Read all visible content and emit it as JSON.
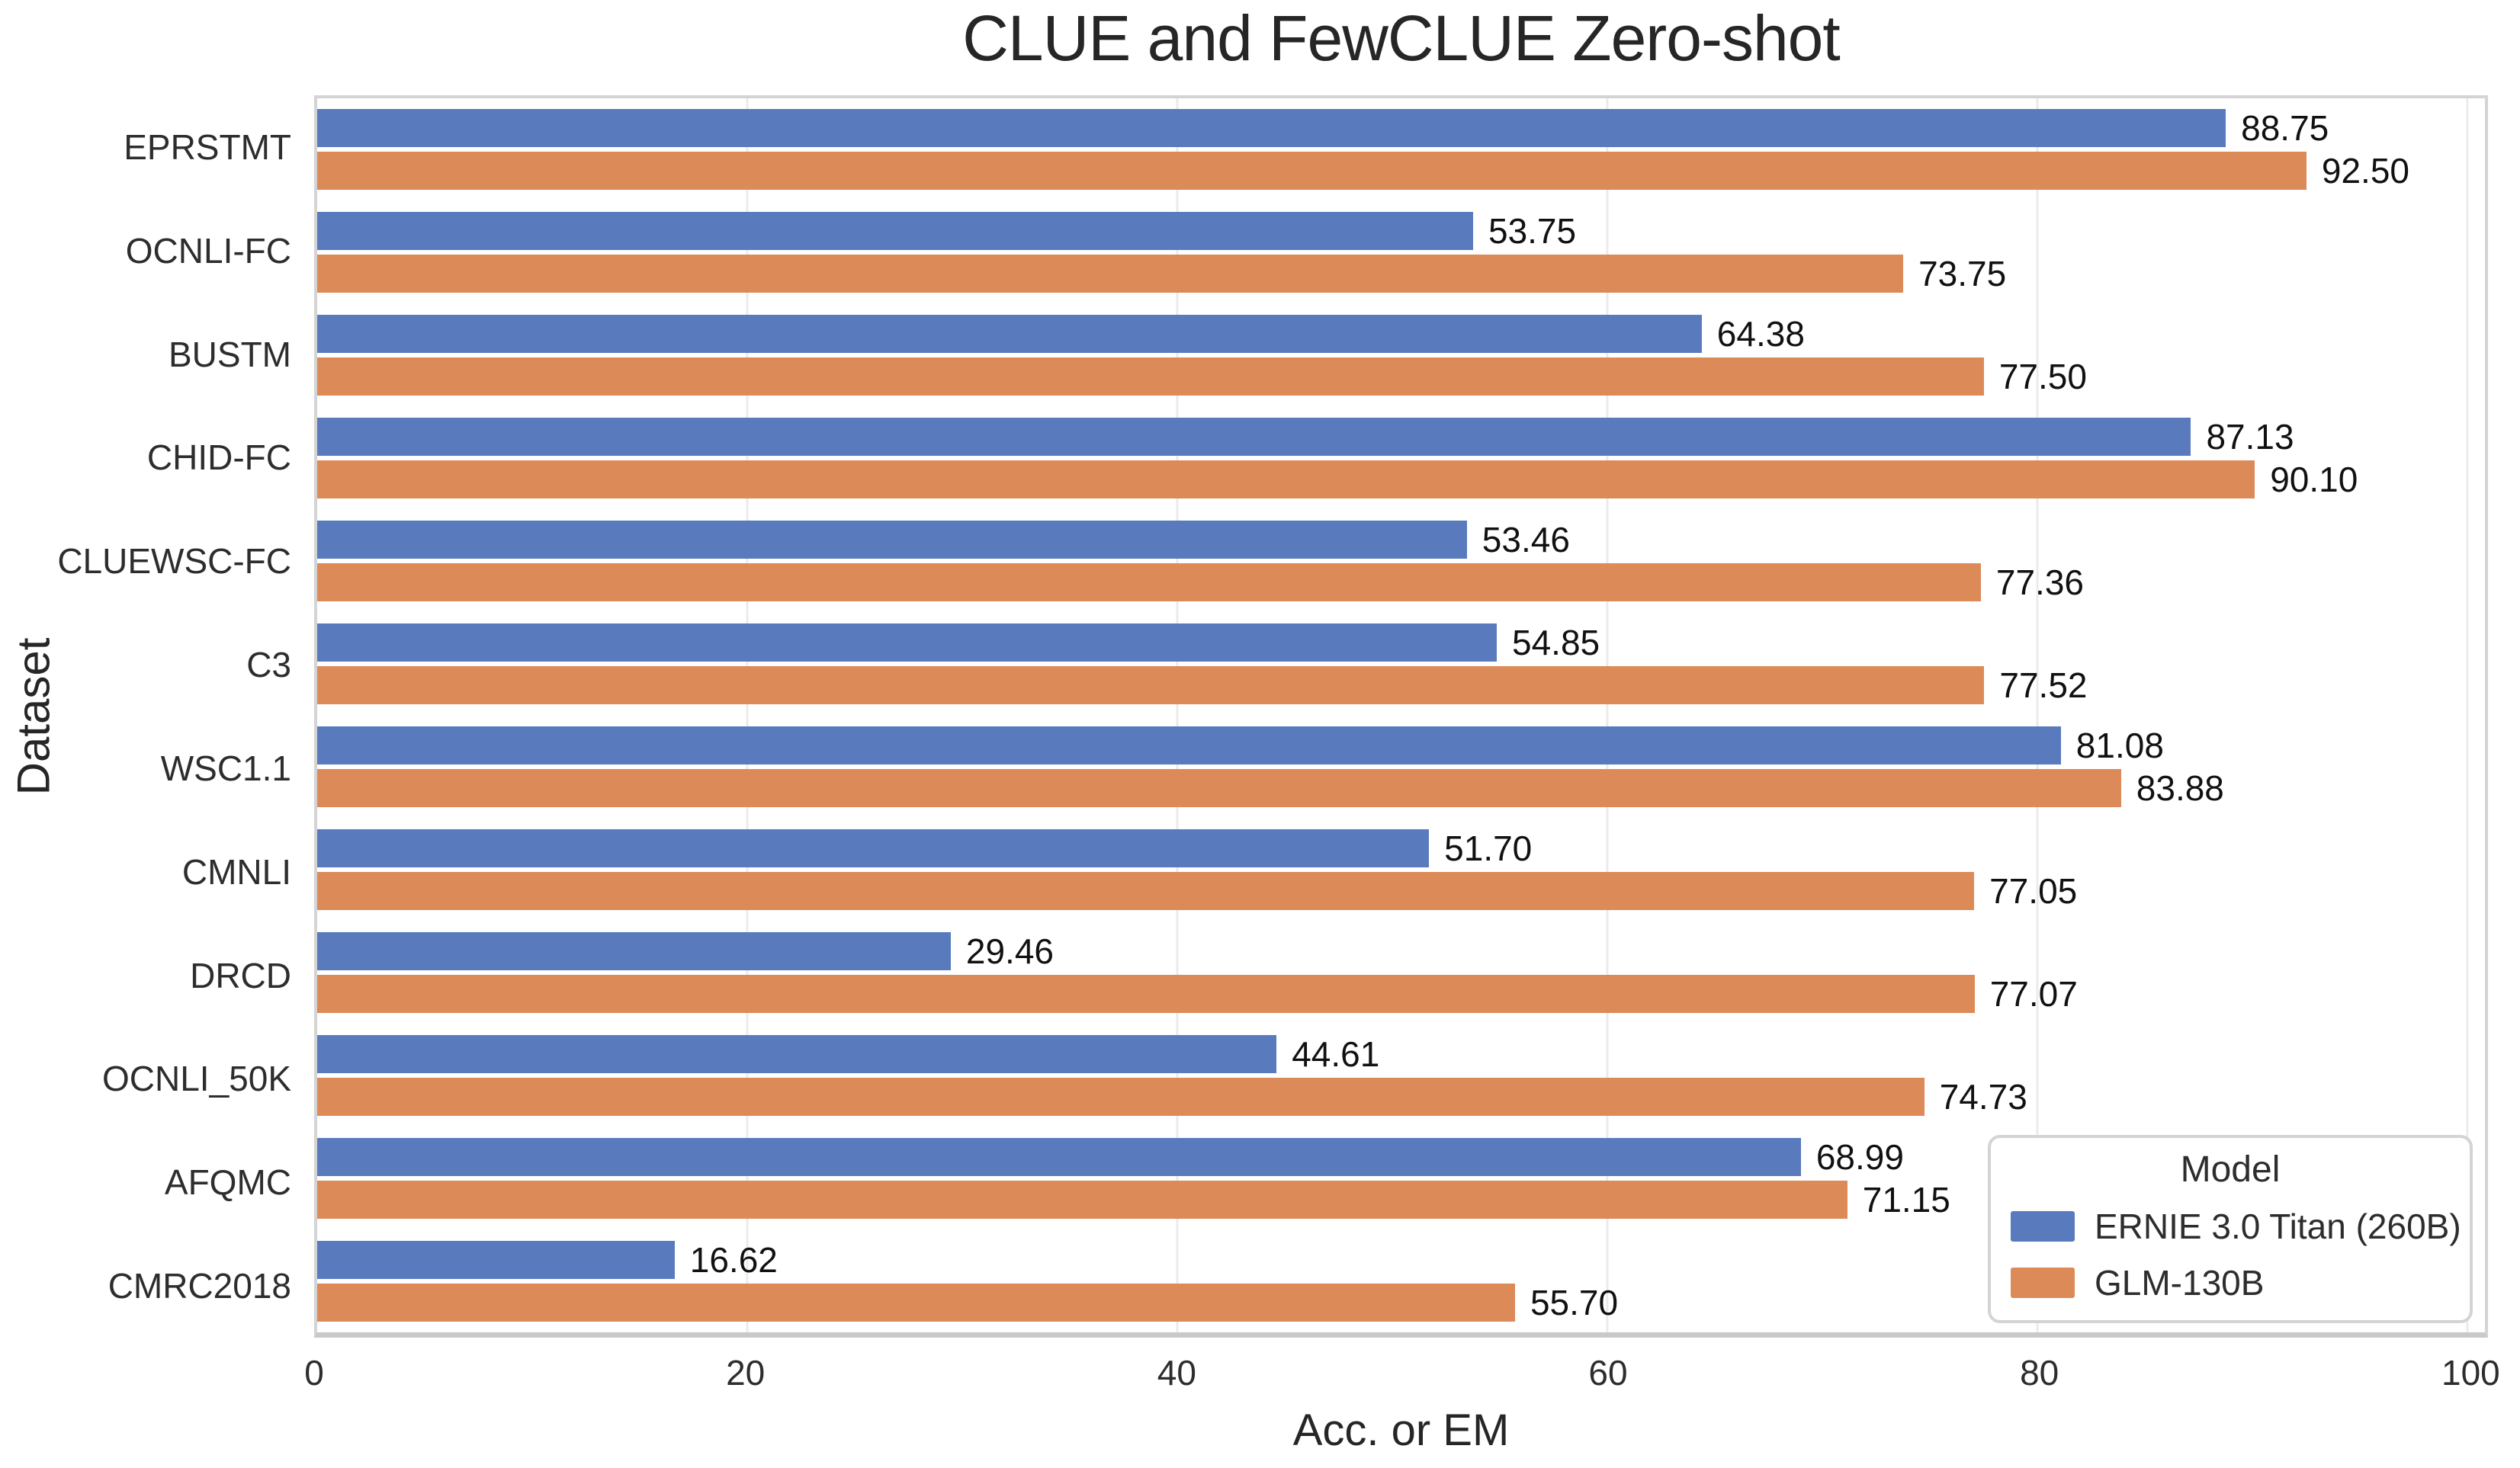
{
  "title": "CLUE and FewCLUE Zero-shot",
  "chart_data": {
    "type": "bar",
    "orientation": "horizontal",
    "title": "CLUE and FewCLUE Zero-shot",
    "xlabel": "Acc. or EM",
    "ylabel": "Dataset",
    "xlim": [
      0,
      100.8
    ],
    "xticks": [
      0,
      20,
      40,
      60,
      80,
      100
    ],
    "grid": "vertical light-gray gridlines, drawn behind bars",
    "legend_position": "lower right",
    "categories": [
      "EPRSTMT",
      "OCNLI-FC",
      "BUSTM",
      "CHID-FC",
      "CLUEWSC-FC",
      "C3",
      "WSC1.1",
      "CMNLI",
      "DRCD",
      "OCNLI_50K",
      "AFQMC",
      "CMRC2018"
    ],
    "series": [
      {
        "name": "ERNIE 3.0 Titan (260B)",
        "color": "#597bbe",
        "values": [
          88.75,
          53.75,
          64.38,
          87.13,
          53.46,
          54.85,
          81.08,
          51.7,
          29.46,
          44.61,
          68.99,
          16.62
        ]
      },
      {
        "name": "GLM-130B",
        "color": "#dc8a58",
        "values": [
          92.5,
          73.75,
          77.5,
          90.1,
          77.36,
          77.52,
          83.88,
          77.05,
          77.07,
          74.73,
          71.15,
          55.7
        ]
      }
    ],
    "legend": {
      "title": "Model",
      "items": [
        "ERNIE 3.0 Titan (260B)",
        "GLM-130B"
      ]
    },
    "value_label_format": "two decimals"
  },
  "colors": {
    "background": "#ffffff",
    "bar_blue": "#597bbe",
    "bar_orange": "#dc8a58",
    "gridline": "#ebebeb",
    "spine": "#d4d4d4",
    "text": "#2d2d2d",
    "value_text": "#111111"
  }
}
